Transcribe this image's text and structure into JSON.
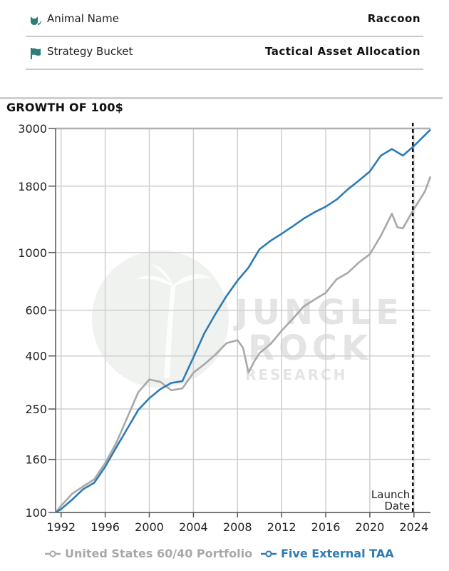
{
  "info": {
    "animal_label": "Animal Name",
    "animal_value": "Raccoon",
    "bucket_label": "Strategy Bucket",
    "bucket_value": "Tactical Asset Allocation",
    "animal_icon": "cat-icon",
    "bucket_icon": "flag-icon",
    "icon_color": "#2a7e78"
  },
  "watermark": {
    "line1": "JUNGLE",
    "line2": "ROCK",
    "line3": "RESEARCH"
  },
  "chart_data": {
    "type": "line",
    "title": "GROWTH OF 100$",
    "y_scale": "log",
    "ylim": [
      100,
      3000
    ],
    "xlim": [
      1991.5,
      2025.5
    ],
    "y_ticks": [
      100,
      160,
      250,
      400,
      600,
      1000,
      1800,
      3000
    ],
    "x_ticks": [
      1992,
      1996,
      2000,
      2004,
      2008,
      2012,
      2016,
      2020,
      2024
    ],
    "grid": true,
    "legend_position": "bottom",
    "annotation": {
      "x": 2023.9,
      "label_line1": "Launch",
      "label_line2": "Date"
    },
    "series": [
      {
        "name": "United States 60/40 Portfolio",
        "color": "#a8a8a8",
        "points": [
          [
            1991.5,
            100
          ],
          [
            1992,
            106
          ],
          [
            1993,
            118
          ],
          [
            1994,
            126
          ],
          [
            1995,
            134
          ],
          [
            1996,
            155
          ],
          [
            1997,
            185
          ],
          [
            1998,
            232
          ],
          [
            1999,
            290
          ],
          [
            2000,
            325
          ],
          [
            2001,
            318
          ],
          [
            2002,
            295
          ],
          [
            2003,
            300
          ],
          [
            2004,
            345
          ],
          [
            2005,
            372
          ],
          [
            2006,
            405
          ],
          [
            2007,
            448
          ],
          [
            2008,
            460
          ],
          [
            2008.5,
            430
          ],
          [
            2009,
            345
          ],
          [
            2009.5,
            380
          ],
          [
            2010,
            410
          ],
          [
            2011,
            445
          ],
          [
            2012,
            500
          ],
          [
            2013,
            555
          ],
          [
            2014,
            620
          ],
          [
            2015,
            660
          ],
          [
            2016,
            700
          ],
          [
            2017,
            790
          ],
          [
            2018,
            835
          ],
          [
            2019,
            915
          ],
          [
            2020,
            985
          ],
          [
            2021,
            1160
          ],
          [
            2022,
            1410
          ],
          [
            2022.5,
            1250
          ],
          [
            2023,
            1240
          ],
          [
            2024,
            1470
          ],
          [
            2025,
            1720
          ],
          [
            2025.5,
            1960
          ]
        ]
      },
      {
        "name": "Five External TAA",
        "color": "#2f7bb3",
        "points": [
          [
            1991.5,
            100
          ],
          [
            1992,
            103
          ],
          [
            1993,
            112
          ],
          [
            1994,
            123
          ],
          [
            1995,
            130
          ],
          [
            1996,
            150
          ],
          [
            1997,
            178
          ],
          [
            1998,
            210
          ],
          [
            1999,
            248
          ],
          [
            2000,
            275
          ],
          [
            2001,
            298
          ],
          [
            2002,
            315
          ],
          [
            2003,
            320
          ],
          [
            2004,
            395
          ],
          [
            2005,
            490
          ],
          [
            2006,
            580
          ],
          [
            2007,
            680
          ],
          [
            2008,
            780
          ],
          [
            2009,
            875
          ],
          [
            2010,
            1030
          ],
          [
            2011,
            1110
          ],
          [
            2012,
            1180
          ],
          [
            2013,
            1260
          ],
          [
            2014,
            1350
          ],
          [
            2015,
            1430
          ],
          [
            2016,
            1500
          ],
          [
            2017,
            1600
          ],
          [
            2018,
            1750
          ],
          [
            2019,
            1890
          ],
          [
            2020,
            2050
          ],
          [
            2021,
            2360
          ],
          [
            2022,
            2500
          ],
          [
            2023,
            2360
          ],
          [
            2024,
            2570
          ],
          [
            2025,
            2830
          ],
          [
            2025.5,
            2970
          ]
        ]
      }
    ]
  }
}
